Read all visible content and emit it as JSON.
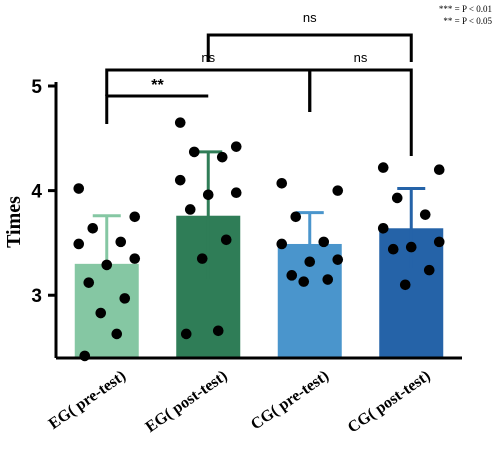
{
  "chart_data": {
    "type": "bar",
    "ylabel": "Times",
    "ylim": [
      2.4,
      5.0
    ],
    "yticks": [
      "3",
      "4",
      "5"
    ],
    "categories": [
      "EG( pre-test)",
      "EG( post-test)",
      "CG( pre-test)",
      "CG( post-test)"
    ],
    "colors": [
      "#85c7a3",
      "#2f7d57",
      "#4a95cc",
      "#2563a8"
    ],
    "errorbar_colors": [
      "#85c7a3",
      "#2f7d57",
      "#4a95cc",
      "#2563a8"
    ],
    "means": [
      3.3,
      3.76,
      3.49,
      3.64
    ],
    "sd": [
      0.46,
      0.61,
      0.3,
      0.38
    ],
    "points": [
      [
        4.02,
        3.75,
        3.64,
        3.51,
        3.49,
        3.35,
        3.29,
        3.12,
        2.97,
        2.83,
        2.63,
        2.42
      ],
      [
        4.65,
        4.42,
        4.37,
        4.32,
        4.1,
        3.98,
        3.96,
        3.82,
        3.53,
        3.35,
        2.66,
        2.63
      ],
      [
        4.07,
        4.0,
        3.75,
        3.51,
        3.49,
        3.34,
        3.32,
        3.19,
        3.15,
        3.13
      ],
      [
        4.22,
        4.2,
        3.93,
        3.77,
        3.64,
        3.51,
        3.46,
        3.44,
        3.24,
        3.1
      ]
    ],
    "comparisons": [
      {
        "from": 0,
        "to": 1,
        "label": "**"
      },
      {
        "from": 0,
        "to": 2,
        "label": "ns"
      },
      {
        "from": 2,
        "to": 3,
        "label": "ns"
      },
      {
        "from": 1,
        "to": 3,
        "label": "ns"
      }
    ],
    "significance_note": [
      "*** = P < 0.01",
      "** = P < 0.05"
    ]
  }
}
